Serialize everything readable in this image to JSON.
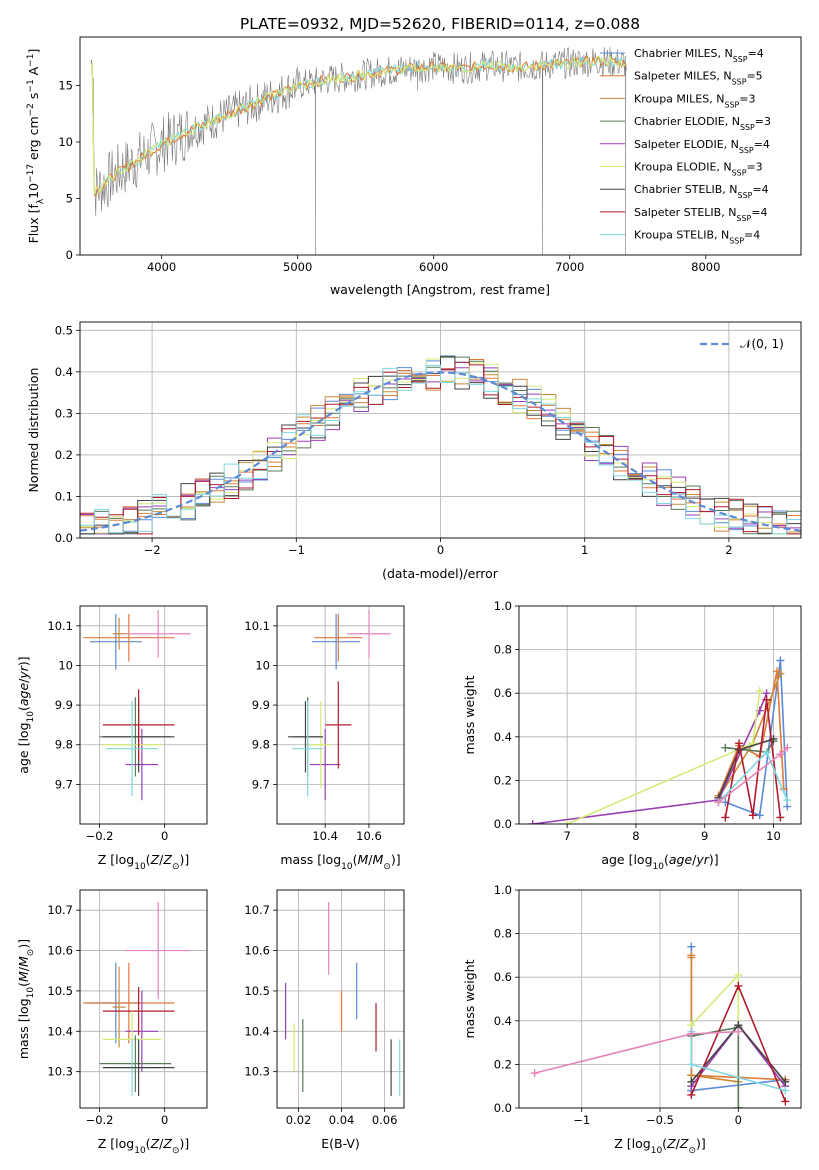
{
  "title": "PLATE=0932, MJD=52620, FIBERID=0114, z=0.088",
  "colors": {
    "Chabrier MILES": "#5b8bd6",
    "Salpeter MILES": "#e07a3a",
    "Kroupa MILES": "#c98a3a",
    "Chabrier ELODIE": "#5a7a5a",
    "Salpeter ELODIE": "#9b3fb5",
    "Kroupa ELODIE": "#d4ea7a",
    "Chabrier STELIB": "#444444",
    "Salpeter STELIB": "#b01c2e",
    "Kroupa STELIB": "#80d8e0",
    "extra": "#e685b8",
    "normal": "#5b8bd6"
  },
  "chart_data": [
    {
      "id": "spectrum",
      "type": "line",
      "xlabel": "wavelength [Angstrom, rest frame]",
      "ylabel": "Flux [f_λ10^-17 erg cm^-2 s^-1 A^-1]",
      "xlim": [
        3400,
        8700
      ],
      "ylim": [
        0,
        19.3
      ],
      "xticks": [
        4000,
        5000,
        6000,
        7000,
        8000
      ],
      "yticks": [
        0,
        5,
        10,
        15
      ],
      "legend_position": "upper right",
      "legend": [
        {
          "label": "Chabrier MILES, N",
          "sub": "SSP",
          "post": "=4"
        },
        {
          "label": "Salpeter MILES, N",
          "sub": "SSP",
          "post": "=5"
        },
        {
          "label": "Kroupa MILES, N",
          "sub": "SSP",
          "post": "=3"
        },
        {
          "label": "Chabrier ELODIE, N",
          "sub": "SSP",
          "post": "=3"
        },
        {
          "label": "Salpeter ELODIE, N",
          "sub": "SSP",
          "post": "=4"
        },
        {
          "label": "Kroupa ELODIE, N",
          "sub": "SSP",
          "post": "=3"
        },
        {
          "label": "Chabrier STELIB, N",
          "sub": "SSP",
          "post": "=4"
        },
        {
          "label": "Salpeter STELIB, N",
          "sub": "SSP",
          "post": "=4"
        },
        {
          "label": "Kroupa STELIB, N",
          "sub": "SSP",
          "post": "=4"
        }
      ],
      "continuum": [
        [
          3500,
          5.5
        ],
        [
          3600,
          6.5
        ],
        [
          3700,
          7.5
        ],
        [
          3800,
          8.2
        ],
        [
          3900,
          9.0
        ],
        [
          4000,
          9.8
        ],
        [
          4200,
          11.0
        ],
        [
          4400,
          12.0
        ],
        [
          4600,
          13.0
        ],
        [
          4800,
          14.0
        ],
        [
          5000,
          15.0
        ],
        [
          5200,
          15.5
        ],
        [
          5400,
          15.8
        ],
        [
          5600,
          16.2
        ],
        [
          5800,
          16.5
        ],
        [
          6000,
          16.7
        ],
        [
          6200,
          16.5
        ],
        [
          6400,
          16.8
        ],
        [
          6600,
          16.6
        ],
        [
          6800,
          16.8
        ],
        [
          7000,
          17.0
        ],
        [
          7200,
          17.2
        ],
        [
          7400,
          17.0
        ]
      ],
      "spikes": [
        [
          5130,
          0
        ],
        [
          6800,
          0
        ],
        [
          7410,
          0
        ],
        [
          5880,
          14.5
        ],
        [
          6560,
          17.5
        ],
        [
          7300,
          17.8
        ]
      ]
    },
    {
      "id": "residuals",
      "type": "line",
      "xlabel": "(data-model)/error",
      "ylabel": "Normed distribution",
      "xlim": [
        -2.5,
        2.5
      ],
      "ylim": [
        0,
        0.52
      ],
      "xticks": [
        -2,
        -1,
        0,
        1,
        2
      ],
      "yticks": [
        0.0,
        0.1,
        0.2,
        0.3,
        0.4,
        0.5
      ],
      "grid": true,
      "legend": [
        {
          "label": "𝒩(0, 1)"
        }
      ],
      "bin_width": 0.1
    },
    {
      "id": "age_vs_z",
      "type": "scatter",
      "xlabel": "Z [log10(Z/Z⊙)]",
      "ylabel": "age  [log10(age/yr)]",
      "xlim": [
        -0.26,
        0.13
      ],
      "ylim": [
        9.6,
        10.15
      ],
      "xticks": [
        -0.2,
        0.0
      ],
      "yticks": [
        9.7,
        9.8,
        9.9,
        10.0,
        10.1
      ],
      "grid": true,
      "points": [
        {
          "s": "Chabrier MILES",
          "x": -0.15,
          "y": 10.06,
          "ex": 0.08,
          "ey": 0.07
        },
        {
          "s": "Salpeter MILES",
          "x": -0.11,
          "y": 10.07,
          "ex": 0.14,
          "ey": 0.06
        },
        {
          "s": "Kroupa MILES",
          "x": -0.14,
          "y": 10.08,
          "ex": 0.02,
          "ey": 0.04
        },
        {
          "s": "extra",
          "x": -0.02,
          "y": 10.08,
          "ex": 0.1,
          "ey": 0.06
        },
        {
          "s": "Chabrier ELODIE",
          "x": -0.09,
          "y": 9.82,
          "ex": 0.11,
          "ey": 0.1
        },
        {
          "s": "Salpeter ELODIE",
          "x": -0.07,
          "y": 9.75,
          "ex": 0.05,
          "ey": 0.09
        },
        {
          "s": "Kroupa ELODIE",
          "x": -0.1,
          "y": 9.8,
          "ex": 0.09,
          "ey": 0.11
        },
        {
          "s": "Chabrier STELIB",
          "x": -0.08,
          "y": 9.82,
          "ex": 0.11,
          "ey": 0.09
        },
        {
          "s": "Salpeter STELIB",
          "x": -0.08,
          "y": 9.85,
          "ex": 0.11,
          "ey": 0.09
        },
        {
          "s": "Kroupa STELIB",
          "x": -0.1,
          "y": 9.79,
          "ex": 0.08,
          "ey": 0.12
        }
      ]
    },
    {
      "id": "age_vs_mass",
      "type": "scatter",
      "xlabel": "mass [log10(M/M⊙)]",
      "ylabel": "",
      "xlim": [
        10.18,
        10.76
      ],
      "ylim": [
        9.6,
        10.15
      ],
      "xticks": [
        10.4,
        10.6
      ],
      "yticks": [
        9.7,
        9.8,
        9.9,
        10.0,
        10.1
      ],
      "grid": true,
      "points": [
        {
          "s": "Chabrier MILES",
          "x": 10.45,
          "y": 10.06,
          "ex": 0.11,
          "ey": 0.07
        },
        {
          "s": "Salpeter MILES",
          "x": 10.46,
          "y": 10.07,
          "ex": 0.11,
          "ey": 0.06
        },
        {
          "s": "extra",
          "x": 10.6,
          "y": 10.08,
          "ex": 0.1,
          "ey": 0.06
        },
        {
          "s": "Chabrier ELODIE",
          "x": 10.32,
          "y": 9.82,
          "ex": 0.07,
          "ey": 0.1
        },
        {
          "s": "Salpeter ELODIE",
          "x": 10.4,
          "y": 9.75,
          "ex": 0.07,
          "ey": 0.09
        },
        {
          "s": "Kroupa ELODIE",
          "x": 10.38,
          "y": 9.8,
          "ex": 0.05,
          "ey": 0.11
        },
        {
          "s": "Chabrier STELIB",
          "x": 10.31,
          "y": 9.82,
          "ex": 0.08,
          "ey": 0.09
        },
        {
          "s": "Salpeter STELIB",
          "x": 10.46,
          "y": 9.85,
          "ex": 0.06,
          "ey": 0.11
        },
        {
          "s": "Kroupa STELIB",
          "x": 10.32,
          "y": 9.79,
          "ex": 0.07,
          "ey": 0.12
        }
      ]
    },
    {
      "id": "mass_weight_vs_age",
      "type": "line",
      "xlabel": "age  [log10(age/yr)]",
      "ylabel": "mass weight",
      "xlim": [
        6.3,
        10.4
      ],
      "ylim": [
        0,
        1.0
      ],
      "xticks": [
        7,
        8,
        9,
        10
      ],
      "yticks": [
        0.0,
        0.2,
        0.4,
        0.6,
        0.8,
        1.0
      ],
      "grid": true,
      "series": [
        {
          "s": "Chabrier MILES",
          "x": [
            9.3,
            9.8,
            10.1,
            10.2
          ],
          "y": [
            0.1,
            0.04,
            0.75,
            0.08
          ]
        },
        {
          "s": "Salpeter MILES",
          "x": [
            9.2,
            9.5,
            9.8,
            10.05,
            10.15
          ],
          "y": [
            0.13,
            0.36,
            0.31,
            0.7,
            0.16
          ]
        },
        {
          "s": "Kroupa MILES",
          "x": [
            9.2,
            9.7,
            10.1
          ],
          "y": [
            0.12,
            0.37,
            0.69
          ]
        },
        {
          "s": "Chabrier ELODIE",
          "x": [
            9.3,
            9.9,
            10.0
          ],
          "y": [
            0.35,
            0.33,
            0.38
          ]
        },
        {
          "s": "Salpeter ELODIE",
          "x": [
            6.5,
            9.2,
            9.8,
            9.9
          ],
          "y": [
            0.0,
            0.11,
            0.52,
            0.6
          ]
        },
        {
          "s": "Kroupa ELODIE",
          "x": [
            7.0,
            9.7,
            9.8
          ],
          "y": [
            0.0,
            0.37,
            0.61
          ]
        },
        {
          "s": "Chabrier STELIB",
          "x": [
            9.2,
            9.5,
            10.0
          ],
          "y": [
            0.12,
            0.34,
            0.39
          ]
        },
        {
          "s": "Salpeter STELIB",
          "x": [
            9.3,
            9.5,
            9.7,
            9.9,
            10.1
          ],
          "y": [
            0.03,
            0.37,
            0.04,
            0.57,
            0.03
          ]
        },
        {
          "s": "Kroupa STELIB",
          "x": [
            9.2,
            9.9,
            10.2
          ],
          "y": [
            0.1,
            0.33,
            0.11
          ]
        },
        {
          "s": "extra",
          "x": [
            9.2,
            10.1,
            10.2
          ],
          "y": [
            0.1,
            0.32,
            0.35
          ]
        }
      ]
    },
    {
      "id": "mass_vs_z",
      "type": "scatter",
      "xlabel": "Z [log10(Z/Z⊙)]",
      "ylabel": "mass [log10(M/M⊙)]",
      "xlim": [
        -0.26,
        0.13
      ],
      "ylim": [
        10.21,
        10.75
      ],
      "xticks": [
        -0.2,
        0.0
      ],
      "yticks": [
        10.3,
        10.4,
        10.5,
        10.6,
        10.7
      ],
      "grid": true,
      "points": [
        {
          "s": "extra",
          "x": -0.02,
          "y": 10.6,
          "ex": 0.1,
          "ey": 0.12
        },
        {
          "s": "Chabrier MILES",
          "x": -0.15,
          "y": 10.47,
          "ex": 0.08,
          "ey": 0.1
        },
        {
          "s": "Salpeter MILES",
          "x": -0.11,
          "y": 10.47,
          "ex": 0.14,
          "ey": 0.1
        },
        {
          "s": "Kroupa MILES",
          "x": -0.14,
          "y": 10.46,
          "ex": 0.02,
          "ey": 0.1
        },
        {
          "s": "Salpeter ELODIE",
          "x": -0.07,
          "y": 10.4,
          "ex": 0.05,
          "ey": 0.1
        },
        {
          "s": "Salpeter STELIB",
          "x": -0.08,
          "y": 10.45,
          "ex": 0.11,
          "ey": 0.06
        },
        {
          "s": "Kroupa ELODIE",
          "x": -0.1,
          "y": 10.38,
          "ex": 0.09,
          "ey": 0.07
        },
        {
          "s": "Chabrier ELODIE",
          "x": -0.09,
          "y": 10.32,
          "ex": 0.11,
          "ey": 0.07
        },
        {
          "s": "Kroupa STELIB",
          "x": -0.1,
          "y": 10.31,
          "ex": 0.08,
          "ey": 0.07
        },
        {
          "s": "Chabrier STELIB",
          "x": -0.08,
          "y": 10.31,
          "ex": 0.11,
          "ey": 0.07
        }
      ]
    },
    {
      "id": "mass_vs_ebv",
      "type": "scatter",
      "xlabel": "E(B-V)",
      "ylabel": "",
      "xlim": [
        0.01,
        0.069
      ],
      "ylim": [
        10.21,
        10.75
      ],
      "xticks": [
        0.02,
        0.04,
        0.06
      ],
      "yticks": [
        10.3,
        10.4,
        10.5,
        10.6,
        10.7
      ],
      "grid": true,
      "points": [
        {
          "s": "Salpeter ELODIE",
          "x": 0.014,
          "y": 10.45,
          "ex": 0,
          "ey": 0.07
        },
        {
          "s": "Kroupa ELODIE",
          "x": 0.018,
          "y": 10.36,
          "ex": 0,
          "ey": 0.06
        },
        {
          "s": "Chabrier ELODIE",
          "x": 0.022,
          "y": 10.34,
          "ex": 0,
          "ey": 0.09
        },
        {
          "s": "extra",
          "x": 0.034,
          "y": 10.63,
          "ex": 0,
          "ey": 0.09
        },
        {
          "s": "Salpeter MILES",
          "x": 0.04,
          "y": 10.45,
          "ex": 0,
          "ey": 0.05
        },
        {
          "s": "Chabrier MILES",
          "x": 0.047,
          "y": 10.5,
          "ex": 0,
          "ey": 0.07
        },
        {
          "s": "Salpeter STELIB",
          "x": 0.056,
          "y": 10.41,
          "ex": 0,
          "ey": 0.06
        },
        {
          "s": "Chabrier STELIB",
          "x": 0.063,
          "y": 10.31,
          "ex": 0,
          "ey": 0.07
        },
        {
          "s": "Kroupa STELIB",
          "x": 0.067,
          "y": 10.31,
          "ex": 0,
          "ey": 0.07
        }
      ]
    },
    {
      "id": "mass_weight_vs_z",
      "type": "line",
      "xlabel": "Z [log10(Z/Z⊙)]",
      "ylabel": "mass weight",
      "xlim": [
        -1.4,
        0.4
      ],
      "ylim": [
        0,
        1.0
      ],
      "xticks": [
        -1.0,
        -0.5,
        0.0
      ],
      "yticks": [
        0.0,
        0.2,
        0.4,
        0.6,
        0.8,
        1.0
      ],
      "grid": true,
      "series": [
        {
          "s": "Chabrier MILES",
          "x": [
            -0.3,
            -0.3,
            -0.3,
            0.3
          ],
          "y": [
            0.74,
            0.08,
            0.08,
            0.13
          ]
        },
        {
          "s": "Salpeter MILES",
          "x": [
            -0.3,
            -0.3,
            0.0,
            0.3
          ],
          "y": [
            0.7,
            0.15,
            0.14,
            0.13
          ]
        },
        {
          "s": "Kroupa MILES",
          "x": [
            -0.3,
            -0.3,
            0.0
          ],
          "y": [
            0.69,
            0.15,
            0.12
          ]
        },
        {
          "s": "Kroupa ELODIE",
          "x": [
            -0.3,
            0.0,
            0.0
          ],
          "y": [
            0.38,
            0.61,
            0.0
          ]
        },
        {
          "s": "Chabrier ELODIE",
          "x": [
            -0.3,
            0.0,
            0.0
          ],
          "y": [
            0.33,
            0.37,
            0.0
          ]
        },
        {
          "s": "Salpeter ELODIE",
          "x": [
            -0.3,
            0.0,
            0.3
          ],
          "y": [
            0.1,
            0.38,
            0.1
          ]
        },
        {
          "s": "Chabrier STELIB",
          "x": [
            -0.3,
            0.0,
            0.3
          ],
          "y": [
            0.12,
            0.38,
            0.12
          ]
        },
        {
          "s": "Salpeter STELIB",
          "x": [
            -0.3,
            0.0,
            0.3
          ],
          "y": [
            0.06,
            0.56,
            0.03
          ]
        },
        {
          "s": "Kroupa STELIB",
          "x": [
            -0.3,
            -0.3,
            0.3
          ],
          "y": [
            0.35,
            0.2,
            0.08
          ]
        },
        {
          "s": "extra",
          "x": [
            -1.3,
            -0.3,
            0.0
          ],
          "y": [
            0.16,
            0.34,
            0.35
          ]
        }
      ]
    }
  ]
}
